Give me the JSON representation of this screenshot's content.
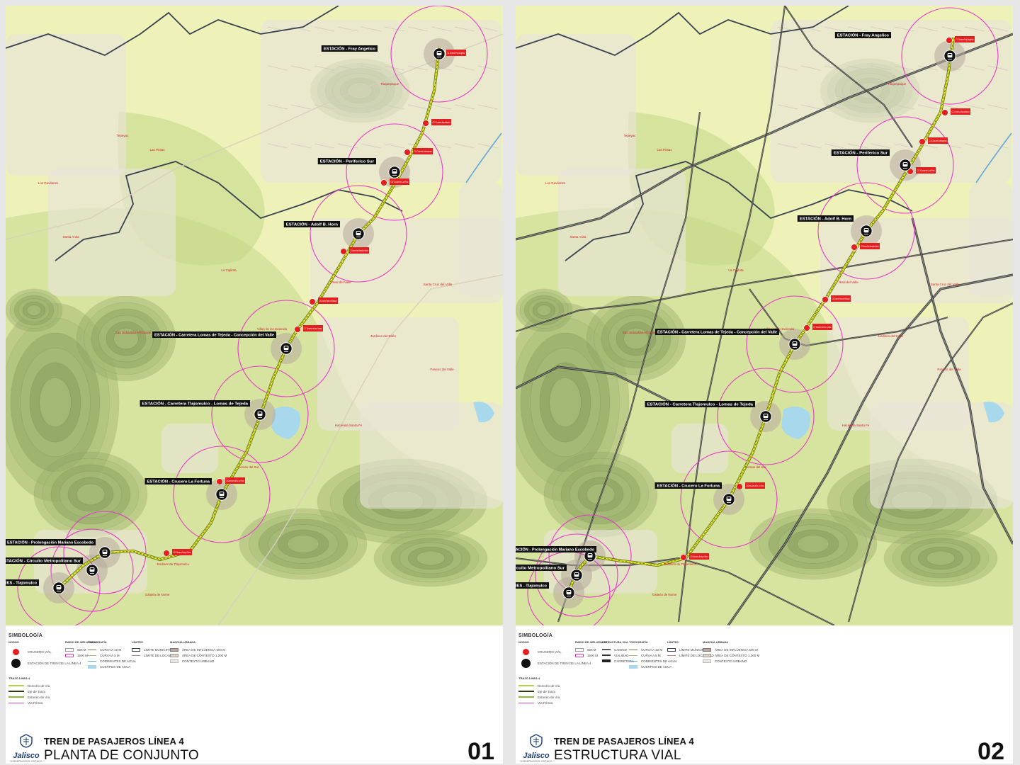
{
  "project_title": "TREN DE PASAJEROS LÍNEA 4",
  "brand": {
    "name": "Jalisco",
    "tagline": "GOBIERNO DEL ESTADO"
  },
  "sheets": [
    {
      "subtitle": "PLANTA DE CONJUNTO",
      "number": "01"
    },
    {
      "subtitle": "ESTRUCTURA VIAL",
      "number": "02"
    }
  ],
  "stations": [
    "ESTACIÓN - Fray Angelico",
    "ESTACIÓN - Periferico Sur",
    "ESTACIÓN - Adolf B. Horn",
    "ESTACIÓN - Carretera Lomas de Tejeda - Concepción del Valle",
    "ESTACIÓN - Carretera Tlajomulco - Lomas de Tejeda",
    "ESTACIÓN - Crucero La Fortuna",
    "ESTACIÓN - Prolongación Mariano Escobedo",
    "ESTACIÓN - Circuito Metropolitano Sur",
    "TALLERES - Tlajomulco"
  ],
  "crossings": [
    "C1 Crucero Fray Angelico",
    "C2 Crucero Acueducto",
    "C3 Crucero Artesanos",
    "C4 Crucero La Paz",
    "C5 Crucero San Sebastián Oriente",
    "C6 Crucero Paseo del Bosque",
    "C7 Crucero de las Lomas",
    "C8 Crucero Lomas del Sur - La Fortuna",
    "C9 Crucero Arroyo Seco"
  ],
  "places": [
    "Tlaquepaque",
    "Las Pintas",
    "Los Gavilanes",
    "Santa Anita",
    "Real del Valle",
    "San Sebastián el Grande",
    "Villas de la Hacienda",
    "Jardines del Edén",
    "Paseos del Valle",
    "Hacienda Santa Fe",
    "Jardines de Tlajomulco",
    "Galaxia de Nome",
    "Lomas del Sur",
    "La Cajilota",
    "Tepeyac",
    "Santa Cruz del Valle"
  ],
  "legend": {
    "title": "SIMBOLOGÍA",
    "sections": {
      "nodos": {
        "heading": "NODOS",
        "items": [
          "CRUCERO VIAL",
          "ESTACIÓN DE TREN DE LA LÍNEA 4"
        ]
      },
      "trazo": {
        "heading": "TRAZO LÍNEA 4",
        "items": [
          "Derecho de Vía",
          "Eje de Trazo",
          "Extremo de Vía",
          "Vía Férrea"
        ]
      },
      "radio": {
        "heading": "RADIO DE INFLUENCIA",
        "items": [
          "500 M",
          "1500 M"
        ]
      },
      "estructura": {
        "heading": "ESTRUCTURA VIAL",
        "items": [
          "CAMINO",
          "VIALIDAD",
          "CARRETERA"
        ]
      },
      "topografia": {
        "heading": "TOPOGRAFÍA",
        "items": [
          "CURVA A 10 M",
          "CURVA A 5 M",
          "CORRIENTES DE AGUA",
          "CUERPOS DE AGUA"
        ]
      },
      "limites": {
        "heading": "LÍMITES",
        "items": [
          "LÍMITE MUNICIPAL",
          "LÍMITE DE LOCALIDAD"
        ]
      },
      "mancha": {
        "heading": "MANCHA URBANA",
        "items": [
          "ÁREA DE INFLUENCIA 500 M",
          "ÁREA DE CONTEXTO 1,200 M",
          "CONTEXTO URBANO"
        ]
      }
    }
  },
  "colors": {
    "terrain_light": "#eef2b8",
    "terrain_green": "#c4d98a",
    "hill": "#8ea463",
    "urban": "#e8e4da",
    "route": "#f2ee2a",
    "crossing": "#e41f1f",
    "influence": "#e43ac8",
    "municipal_limit": "#3a4150",
    "water": "#a8d8ec"
  }
}
